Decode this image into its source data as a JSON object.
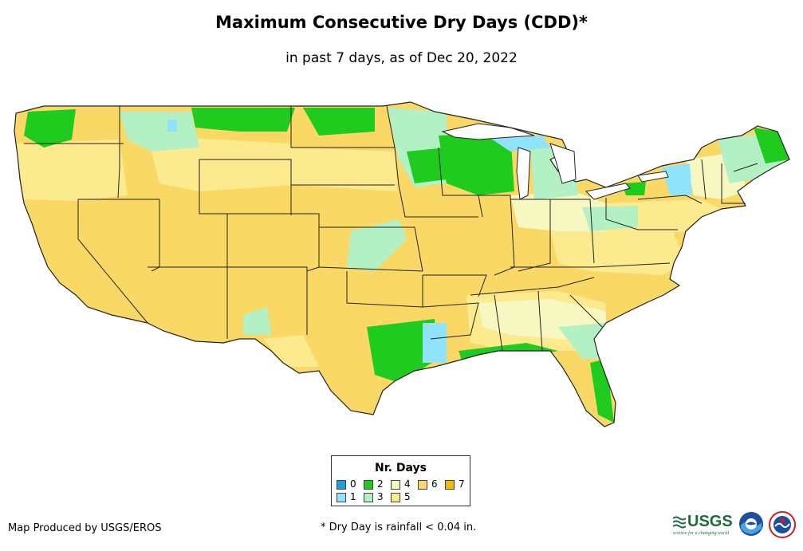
{
  "title": "Maximum Consecutive Dry Days (CDD)*",
  "subtitle": "in past 7 days, as of Dec 20, 2022",
  "legend": {
    "title": "Nr. Days",
    "items": [
      {
        "label": "0",
        "color": "#1a9fe0"
      },
      {
        "label": "1",
        "color": "#8fe3fb"
      },
      {
        "label": "2",
        "color": "#1ecb1e"
      },
      {
        "label": "3",
        "color": "#b3f1c4"
      },
      {
        "label": "4",
        "color": "#f7f7c1"
      },
      {
        "label": "5",
        "color": "#fbeb8e"
      },
      {
        "label": "6",
        "color": "#f9d866"
      },
      {
        "label": "7",
        "color": "#f5b800"
      }
    ]
  },
  "credit": "Map Produced by USGS/EROS",
  "footnote": "* Dry Day is rainfall < 0.04 in.",
  "logos": {
    "usgs": "USGS",
    "usgs_tagline": "science for a changing world",
    "noaa": "noaa-logo-icon",
    "nws": "nws-logo-icon"
  },
  "colors": {
    "border": "#222222",
    "background": "#ffffff"
  }
}
